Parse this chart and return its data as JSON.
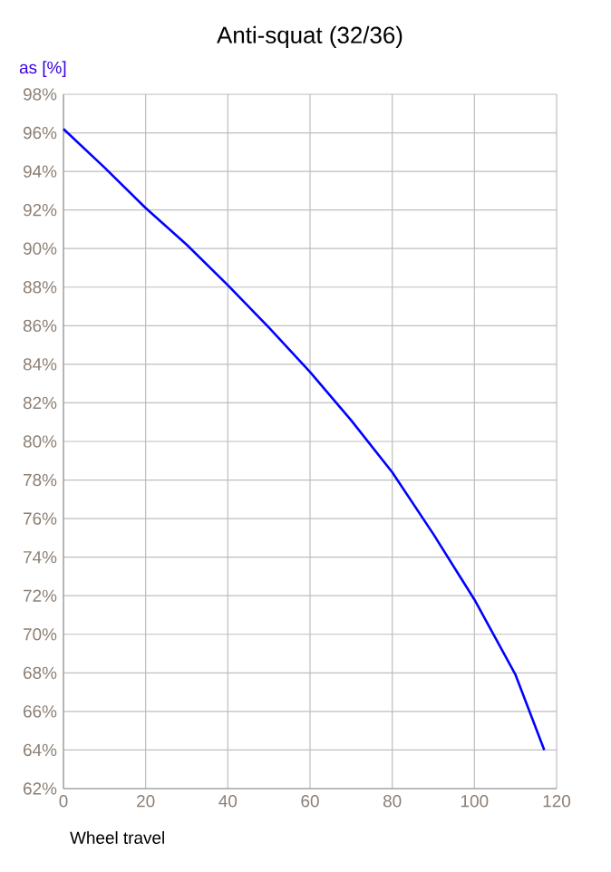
{
  "chart_data": {
    "type": "line",
    "title": "Anti-squat (32/36)",
    "xlabel": "Wheel travel",
    "ylabel": "as [%]",
    "x": [
      0,
      10,
      20,
      30,
      40,
      50,
      60,
      70,
      80,
      90,
      100,
      110,
      117
    ],
    "series": [
      {
        "color": "#0000ff",
        "values": [
          96.2,
          94.2,
          92.1,
          90.2,
          88.1,
          85.9,
          83.6,
          81.1,
          78.4,
          75.2,
          71.8,
          67.9,
          64.0
        ]
      }
    ],
    "xlim": [
      0,
      120
    ],
    "xticks": [
      0,
      20,
      40,
      60,
      80,
      100,
      120
    ],
    "ylim": [
      62,
      98
    ],
    "yticks": [
      {
        "value": 62,
        "label": "62%"
      },
      {
        "value": 64,
        "label": "64%"
      },
      {
        "value": 66,
        "label": "66%"
      },
      {
        "value": 68,
        "label": "68%"
      },
      {
        "value": 70,
        "label": "70%"
      },
      {
        "value": 72,
        "label": "72%"
      },
      {
        "value": 74,
        "label": "74%"
      },
      {
        "value": 76,
        "label": "76%"
      },
      {
        "value": 78,
        "label": "78%"
      },
      {
        "value": 80,
        "label": "80%"
      },
      {
        "value": 82,
        "label": "82%"
      },
      {
        "value": 84,
        "label": "84%"
      },
      {
        "value": 86,
        "label": "86%"
      },
      {
        "value": 88,
        "label": "88%"
      },
      {
        "value": 90,
        "label": "90%"
      },
      {
        "value": 92,
        "label": "92%"
      },
      {
        "value": 94,
        "label": "94%"
      },
      {
        "value": 96,
        "label": "96%"
      },
      {
        "value": 98,
        "label": "98%"
      }
    ],
    "grid": true,
    "marker": "none",
    "line_style": "solid"
  }
}
